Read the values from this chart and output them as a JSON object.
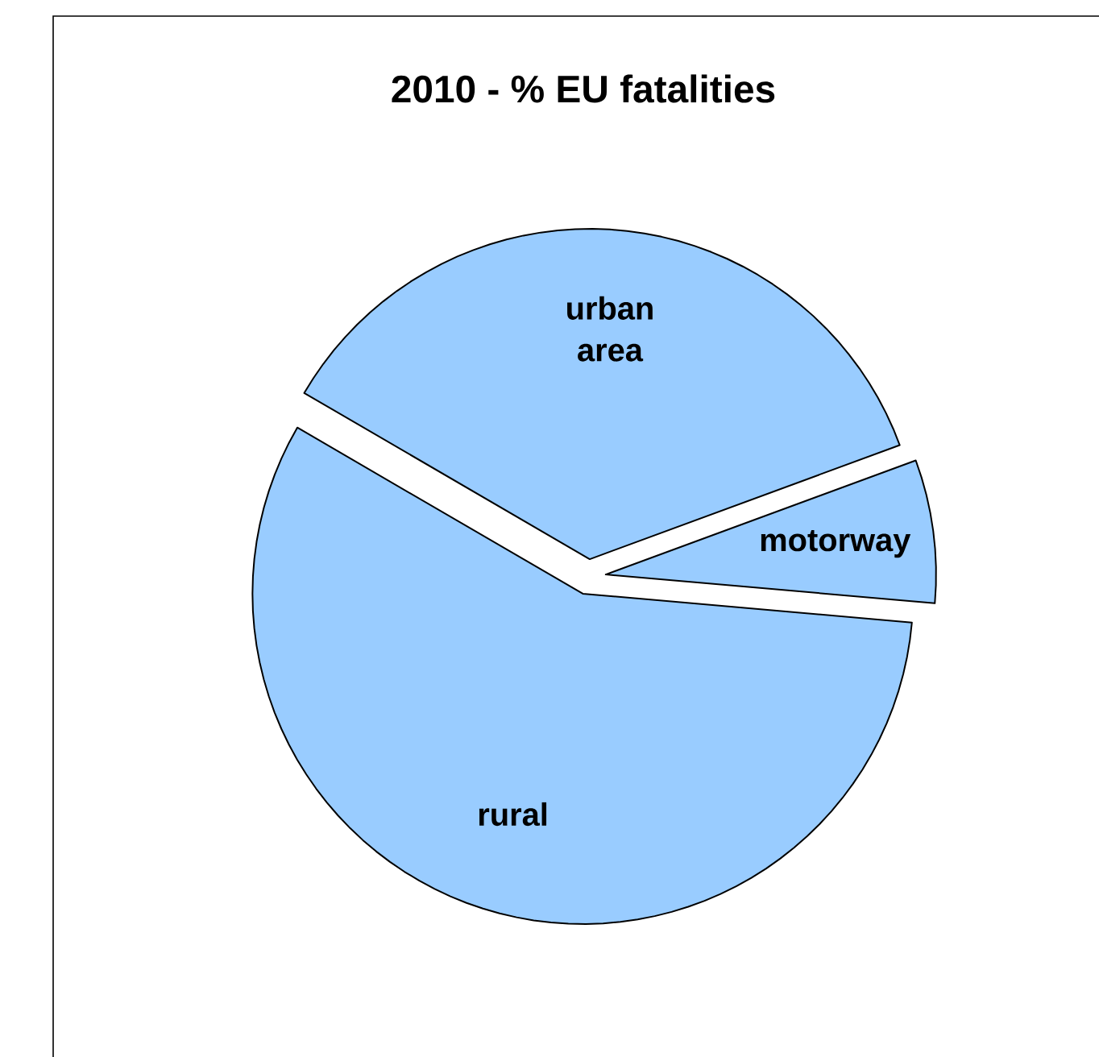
{
  "chart_data": {
    "type": "pie",
    "title": "2010 - % EU fatalities",
    "categories": [
      "motorway",
      "urban area",
      "rural"
    ],
    "values": [
      7,
      36,
      57
    ],
    "colors": [
      "#99ccff",
      "#99ccff",
      "#99ccff"
    ]
  }
}
